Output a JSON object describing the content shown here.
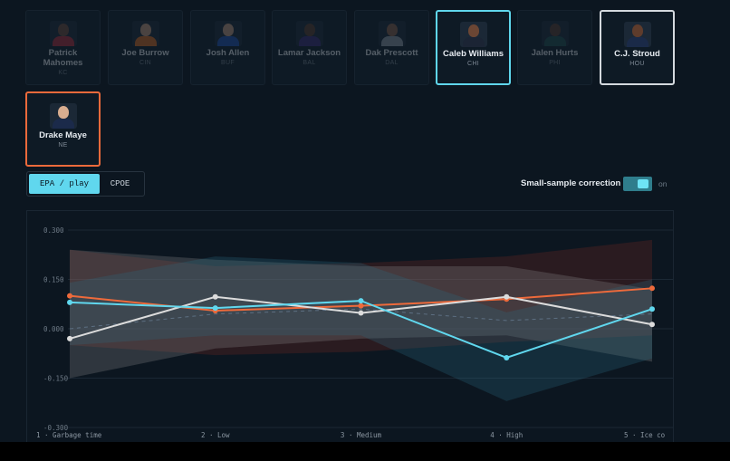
{
  "players": [
    {
      "name": "Patrick Mahomes",
      "team": "KC",
      "state": "dim",
      "skin": "#6e4a38",
      "jersey": "#b42b3a"
    },
    {
      "name": "Joe Burrow",
      "team": "CIN",
      "state": "dim",
      "skin": "#c89a7c",
      "jersey": "#d86a1c"
    },
    {
      "name": "Josh Allen",
      "team": "BUF",
      "state": "dim",
      "skin": "#c59a80",
      "jersey": "#1e4fb0"
    },
    {
      "name": "Lamar Jackson",
      "team": "BAL",
      "state": "dim",
      "skin": "#5a3a2a",
      "jersey": "#3b2a78"
    },
    {
      "name": "Dak Prescott",
      "team": "DAL",
      "state": "dim",
      "skin": "#8a5e48",
      "jersey": "#8d96a3"
    },
    {
      "name": "Caleb Williams",
      "team": "CHI",
      "state": "selected-cyan",
      "skin": "#6b4634",
      "jersey": "#1b2434"
    },
    {
      "name": "Jalen Hurts",
      "team": "PHI",
      "state": "dim",
      "skin": "#5a3a2c",
      "jersey": "#1f4d4c"
    },
    {
      "name": "C.J. Stroud",
      "team": "HOU",
      "state": "selected-white",
      "skin": "#5e3c2c",
      "jersey": "#1a2a48"
    },
    {
      "name": "Drake Maye",
      "team": "NE",
      "state": "selected-orange",
      "skin": "#d8ad90",
      "jersey": "#1b2a4a"
    }
  ],
  "metric_toggle": {
    "active": "EPA / play",
    "inactive": "CPOE"
  },
  "small_sample_correction": {
    "label": "Small-sample correction",
    "state": "on"
  },
  "colors": {
    "cyan": "#60d7ee",
    "white": "#dcdcdc",
    "orange": "#ee6a3b",
    "background": "#0c1620"
  },
  "chart_data": {
    "type": "line",
    "categories": [
      "1 · Garbage time",
      "2 · Low",
      "3 · Medium",
      "4 · High",
      "5 · Ice co"
    ],
    "y_ticks": [
      "0.300",
      "0.150",
      "0.000",
      "-0.150",
      "-0.300"
    ],
    "ylim": [
      -0.3,
      0.3
    ],
    "grid": true,
    "series": [
      {
        "player": "Drake Maye",
        "color": "#ee6a3b",
        "values": [
          0.1,
          0.055,
          0.07,
          0.09,
          0.123
        ],
        "band_low": [
          -0.05,
          -0.08,
          -0.07,
          -0.04,
          -0.02
        ],
        "band_high": [
          0.24,
          0.19,
          0.2,
          0.22,
          0.27
        ]
      },
      {
        "player": "C.J. Stroud",
        "color": "#dcdcdc",
        "values": [
          -0.03,
          0.097,
          0.048,
          0.097,
          0.013
        ],
        "band_low": [
          -0.15,
          -0.06,
          -0.03,
          -0.02,
          -0.1
        ],
        "band_high": [
          0.24,
          0.21,
          0.19,
          0.19,
          0.12
        ]
      },
      {
        "player": "Caleb Williams",
        "color": "#60d7ee",
        "values": [
          0.08,
          0.063,
          0.085,
          -0.088,
          0.06
        ],
        "band_low": [
          -0.05,
          -0.02,
          -0.02,
          -0.22,
          -0.09
        ],
        "band_high": [
          0.14,
          0.22,
          0.2,
          0.05,
          0.15
        ]
      }
    ],
    "baseline": {
      "style": "dashed",
      "values": [
        0.0,
        0.045,
        0.06,
        0.025,
        0.045
      ]
    }
  }
}
